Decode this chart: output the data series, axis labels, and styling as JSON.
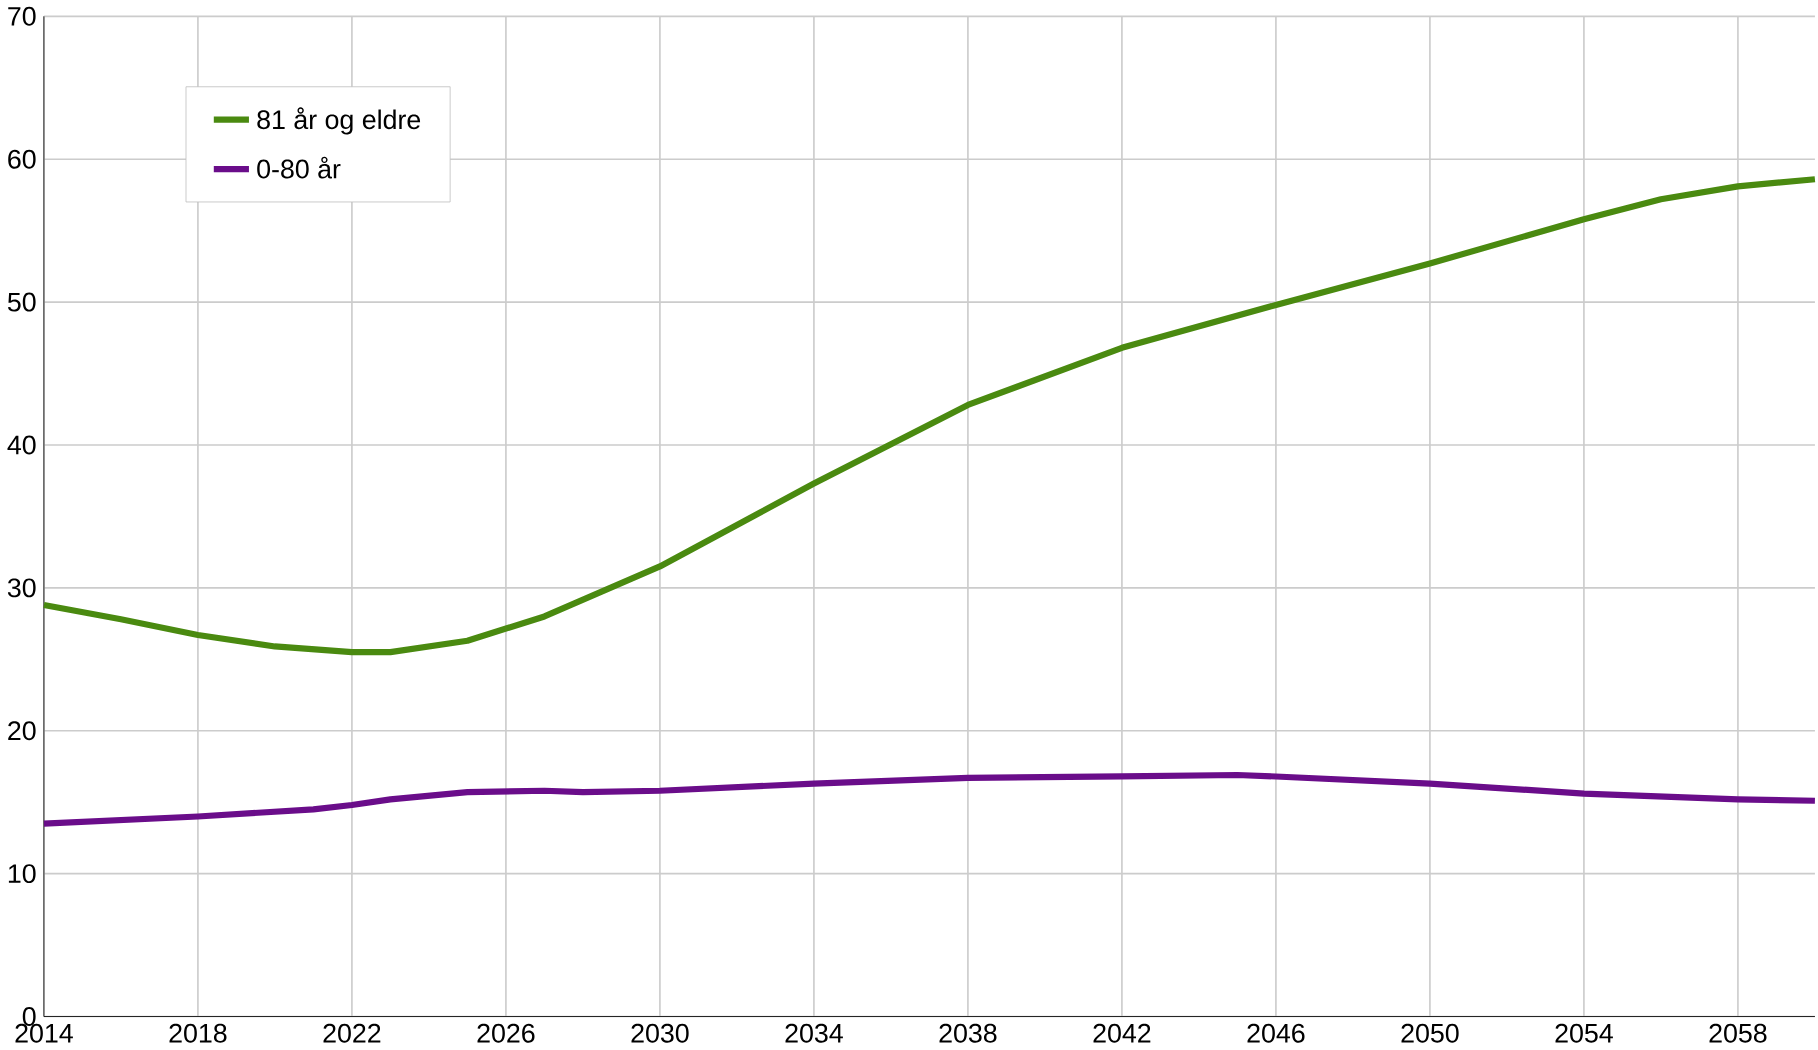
{
  "chart_data": {
    "type": "line",
    "xlim": [
      2014,
      2060
    ],
    "xticks": [
      2014,
      2018,
      2022,
      2026,
      2030,
      2034,
      2038,
      2042,
      2046,
      2050,
      2054,
      2058
    ],
    "ylim": [
      0,
      70
    ],
    "yticks": [
      0,
      10,
      20,
      30,
      40,
      50,
      60,
      70
    ],
    "grid": true,
    "legend": "top left",
    "series": [
      {
        "name": "81 år og eldre",
        "color": "#4a8a10",
        "x": [
          2014,
          2016,
          2018,
          2020,
          2022,
          2023,
          2025,
          2027,
          2030,
          2034,
          2038,
          2042,
          2046,
          2050,
          2054,
          2056,
          2058,
          2060
        ],
        "values": [
          28.8,
          27.8,
          26.7,
          25.9,
          25.5,
          25.5,
          26.3,
          28.0,
          31.5,
          37.3,
          42.8,
          46.8,
          49.8,
          52.7,
          55.8,
          57.2,
          58.1,
          58.6
        ]
      },
      {
        "name": "0-80 år",
        "color": "#6a0d8a",
        "x": [
          2014,
          2018,
          2021,
          2022,
          2023,
          2025,
          2027,
          2028,
          2030,
          2034,
          2038,
          2042,
          2045,
          2046,
          2050,
          2054,
          2058,
          2060
        ],
        "values": [
          13.5,
          14.0,
          14.5,
          14.8,
          15.2,
          15.7,
          15.8,
          15.7,
          15.8,
          16.3,
          16.7,
          16.8,
          16.9,
          16.8,
          16.3,
          15.6,
          15.2,
          15.1
        ]
      }
    ]
  }
}
